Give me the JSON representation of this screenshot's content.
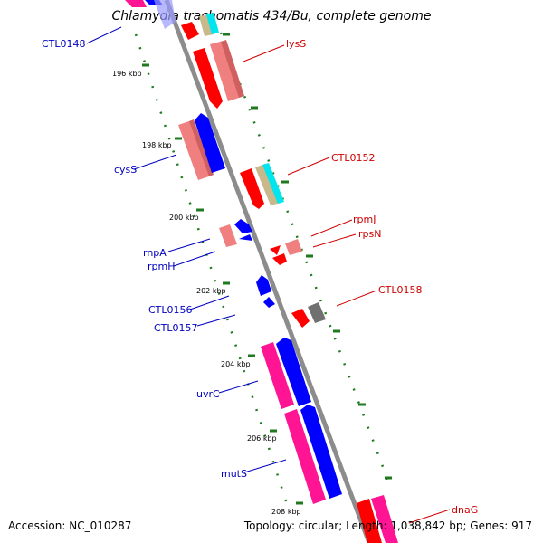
{
  "title": "Chlamydia trachomatis 434/Bu, complete genome",
  "footer": {
    "accession": "Accession: NC_010287",
    "topology": "Topology: circular; Length: 1,038,842 bp; Genes: 917"
  },
  "colors": {
    "backbone": "#8c8c8c",
    "forward_red": "#ff0000",
    "forward_light_red": "#f08080",
    "reverse_blue": "#0000ff",
    "magenta": "#ff1493",
    "tan": "#c8b88a",
    "cyan": "#00e5ee",
    "gray": "#707070",
    "ruler": "#1f7a1f",
    "label_blue": "#0000c0",
    "label_red": "#d00000"
  },
  "ruler_labels": [
    "196 kbp",
    "198 kbp",
    "200 kbp",
    "202 kbp",
    "204 kbp",
    "206 kbp",
    "208 kbp"
  ],
  "gene_labels_left": [
    "CTL0148",
    "cysS",
    "rnpA",
    "rpmH",
    "CTL0156",
    "CTL0157",
    "uvrC",
    "mutS"
  ],
  "gene_labels_right": [
    "lysS",
    "CTL0152",
    "rpmJ",
    "rpsN",
    "CTL0158",
    "dnaG"
  ]
}
